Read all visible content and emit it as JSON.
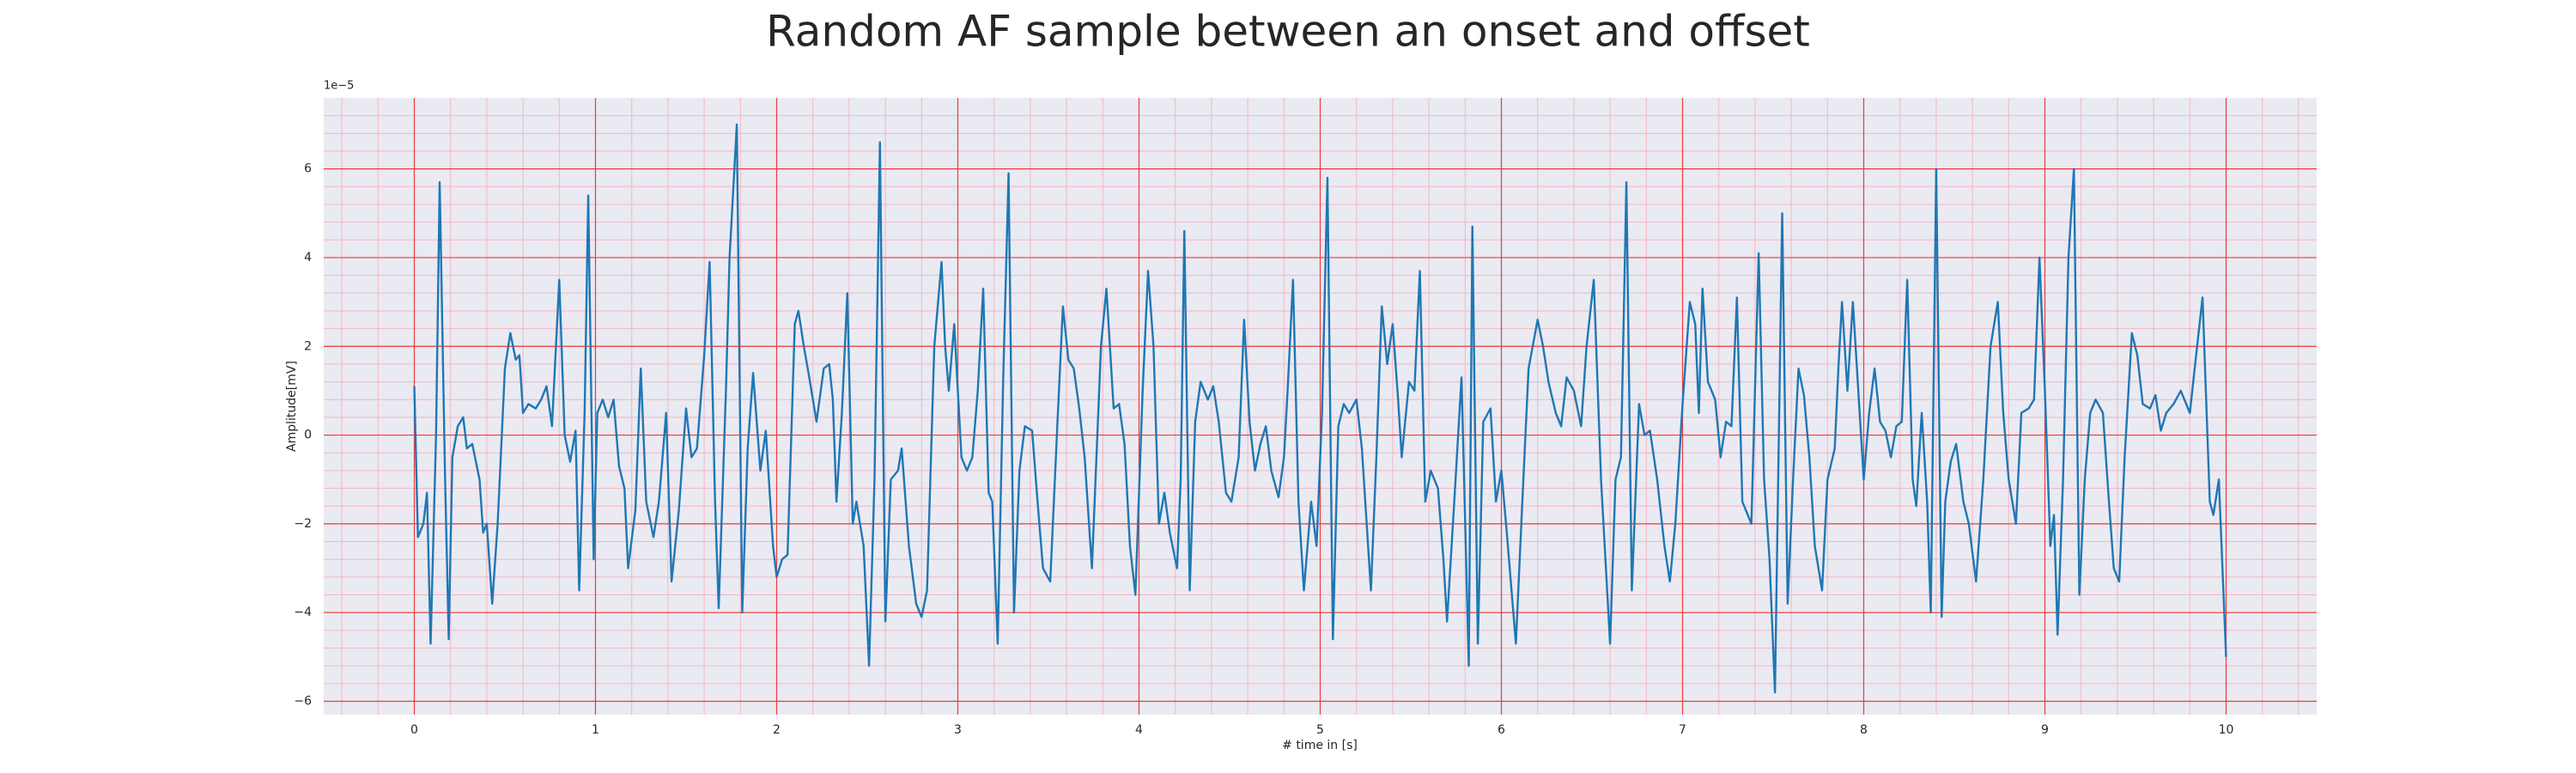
{
  "chart_data": {
    "type": "line",
    "title": "Random AF sample between an onset and offset",
    "x_label": "# time in [s]",
    "y_label": "Amplitude[mV]",
    "y_offset_label": "1e−5",
    "xlim": [
      -0.5,
      10.5
    ],
    "ylim": [
      -6.3,
      7.6
    ],
    "xticks": [
      0,
      1,
      2,
      3,
      4,
      5,
      6,
      7,
      8,
      9,
      10
    ],
    "yticks": [
      {
        "value": -6,
        "label": "−6"
      },
      {
        "value": -4,
        "label": "−4"
      },
      {
        "value": -2,
        "label": "−2"
      },
      0,
      2,
      4,
      6
    ],
    "grid": true,
    "minor_grid": true,
    "series": [
      {
        "color": "#1f77b4",
        "x": [
          0,
          0.02,
          0.05,
          0.07,
          0.09,
          0.12,
          0.14,
          0.17,
          0.19,
          0.21,
          0.24,
          0.27,
          0.29,
          0.32,
          0.36,
          0.38,
          0.4,
          0.43,
          0.46,
          0.5,
          0.53,
          0.56,
          0.58,
          0.6,
          0.63,
          0.67,
          0.7,
          0.73,
          0.76,
          0.8,
          0.83,
          0.86,
          0.89,
          0.91,
          0.94,
          0.96,
          0.99,
          1.01,
          1.04,
          1.07,
          1.1,
          1.13,
          1.16,
          1.18,
          1.22,
          1.25,
          1.28,
          1.32,
          1.35,
          1.39,
          1.42,
          1.46,
          1.5,
          1.53,
          1.56,
          1.6,
          1.63,
          1.66,
          1.68,
          1.72,
          1.74,
          1.78,
          1.81,
          1.84,
          1.87,
          1.91,
          1.94,
          1.98,
          2.0,
          2.03,
          2.06,
          2.1,
          2.12,
          2.15,
          2.18,
          2.22,
          2.26,
          2.29,
          2.31,
          2.33,
          2.36,
          2.39,
          2.42,
          2.44,
          2.48,
          2.51,
          2.54,
          2.57,
          2.6,
          2.63,
          2.67,
          2.69,
          2.73,
          2.77,
          2.8,
          2.83,
          2.87,
          2.91,
          2.93,
          2.95,
          2.98,
          3.02,
          3.05,
          3.08,
          3.11,
          3.14,
          3.17,
          3.19,
          3.22,
          3.25,
          3.28,
          3.31,
          3.34,
          3.37,
          3.41,
          3.44,
          3.47,
          3.51,
          3.55,
          3.58,
          3.61,
          3.64,
          3.67,
          3.7,
          3.74,
          3.79,
          3.82,
          3.86,
          3.89,
          3.92,
          3.95,
          3.98,
          4.02,
          4.05,
          4.08,
          4.11,
          4.14,
          4.17,
          4.21,
          4.23,
          4.25,
          4.28,
          4.31,
          4.34,
          4.38,
          4.41,
          4.44,
          4.48,
          4.51,
          4.55,
          4.58,
          4.61,
          4.64,
          4.67,
          4.7,
          4.73,
          4.77,
          4.8,
          4.82,
          4.85,
          4.88,
          4.91,
          4.95,
          4.98,
          5.01,
          5.04,
          5.07,
          5.1,
          5.13,
          5.16,
          5.2,
          5.23,
          5.28,
          5.31,
          5.34,
          5.37,
          5.4,
          5.43,
          5.45,
          5.49,
          5.52,
          5.55,
          5.58,
          5.61,
          5.65,
          5.68,
          5.7,
          5.74,
          5.78,
          5.82,
          5.84,
          5.87,
          5.9,
          5.94,
          5.97,
          6.0,
          6.03,
          6.08,
          6.11,
          6.15,
          6.2,
          6.23,
          6.26,
          6.3,
          6.33,
          6.36,
          6.4,
          6.44,
          6.47,
          6.51,
          6.55,
          6.6,
          6.63,
          6.66,
          6.69,
          6.72,
          6.76,
          6.79,
          6.82,
          6.86,
          6.9,
          6.93,
          6.96,
          7.0,
          7.04,
          7.07,
          7.09,
          7.11,
          7.14,
          7.18,
          7.21,
          7.24,
          7.27,
          7.3,
          7.33,
          7.38,
          7.42,
          7.45,
          7.48,
          7.51,
          7.55,
          7.58,
          7.61,
          7.64,
          7.67,
          7.7,
          7.73,
          7.77,
          7.8,
          7.84,
          7.86,
          7.88,
          7.91,
          7.94,
          7.97,
          8.0,
          8.03,
          8.06,
          8.09,
          8.12,
          8.15,
          8.18,
          8.21,
          8.24,
          8.27,
          8.29,
          8.32,
          8.35,
          8.37,
          8.4,
          8.43,
          8.45,
          8.48,
          8.51,
          8.55,
          8.58,
          8.62,
          8.66,
          8.7,
          8.74,
          8.77,
          8.8,
          8.84,
          8.87,
          8.91,
          8.94,
          8.97,
          9.0,
          9.03,
          9.05,
          9.07,
          9.1,
          9.13,
          9.16,
          9.19,
          9.22,
          9.25,
          9.28,
          9.32,
          9.35,
          9.38,
          9.41,
          9.44,
          9.48,
          9.51,
          9.54,
          9.58,
          9.61,
          9.64,
          9.67,
          9.71,
          9.75,
          9.8,
          9.84,
          9.87,
          9.91,
          9.93,
          9.96,
          10.0
        ],
        "values": [
          1.1,
          -2.3,
          -2.0,
          -1.3,
          -4.7,
          0,
          5.7,
          -1.0,
          -4.6,
          -0.5,
          0.2,
          0.4,
          -0.3,
          -0.2,
          -1.0,
          -2.2,
          -2.0,
          -3.8,
          -2.0,
          1.5,
          2.3,
          1.7,
          1.8,
          0.5,
          0.7,
          0.6,
          0.8,
          1.1,
          0.2,
          3.5,
          0,
          -0.6,
          0.1,
          -3.5,
          0.5,
          5.4,
          -2.8,
          0.5,
          0.8,
          0.4,
          0.8,
          -0.7,
          -1.2,
          -3.0,
          -1.7,
          1.5,
          -1.5,
          -2.3,
          -1.5,
          0.5,
          -3.3,
          -1.7,
          0.6,
          -0.5,
          -0.3,
          1.8,
          3.9,
          -1.5,
          -3.9,
          1.0,
          4.0,
          7.0,
          -4.0,
          -0.3,
          1.4,
          -0.8,
          0.1,
          -2.5,
          -3.2,
          -2.8,
          -2.7,
          2.5,
          2.8,
          2.0,
          1.3,
          0.3,
          1.5,
          1.6,
          0.8,
          -1.5,
          0.5,
          3.2,
          -2.0,
          -1.5,
          -2.5,
          -5.2,
          -1.0,
          6.6,
          -4.2,
          -1.0,
          -0.8,
          -0.3,
          -2.5,
          -3.8,
          -4.1,
          -3.5,
          2.0,
          3.9,
          2.0,
          1.0,
          2.5,
          -0.5,
          -0.8,
          -0.5,
          1.0,
          3.3,
          -1.3,
          -1.5,
          -4.7,
          1.2,
          5.9,
          -4.0,
          -0.8,
          0.2,
          0.1,
          -1.5,
          -3.0,
          -3.3,
          0.3,
          2.9,
          1.7,
          1.5,
          0.6,
          -0.5,
          -3.0,
          2.0,
          3.3,
          0.6,
          0.7,
          -0.2,
          -2.5,
          -3.6,
          1.0,
          3.7,
          2.0,
          -2.0,
          -1.3,
          -2.2,
          -3.0,
          -1.0,
          4.6,
          -3.5,
          0.3,
          1.2,
          0.8,
          1.1,
          0.3,
          -1.3,
          -1.5,
          -0.5,
          2.6,
          0.3,
          -0.8,
          -0.2,
          0.2,
          -0.8,
          -1.4,
          -0.5,
          1.0,
          3.5,
          -1.5,
          -3.5,
          -1.5,
          -2.5,
          0.5,
          5.8,
          -4.6,
          0.2,
          0.7,
          0.5,
          0.8,
          -0.3,
          -3.5,
          -0.5,
          2.9,
          1.6,
          2.5,
          0.8,
          -0.5,
          1.2,
          1.0,
          3.7,
          -1.5,
          -0.8,
          -1.2,
          -2.8,
          -4.2,
          -1.5,
          1.3,
          -5.2,
          4.7,
          -4.7,
          0.3,
          0.6,
          -1.5,
          -0.8,
          -2.2,
          -4.7,
          -2.0,
          1.5,
          2.6,
          2.0,
          1.2,
          0.5,
          0.2,
          1.3,
          1.0,
          0.2,
          2.0,
          3.5,
          -1.0,
          -4.7,
          -1.0,
          -0.5,
          5.7,
          -3.5,
          0.7,
          0,
          0.1,
          -1.0,
          -2.5,
          -3.3,
          -2.0,
          0.7,
          3.0,
          2.5,
          0.5,
          3.3,
          1.2,
          0.8,
          -0.5,
          0.3,
          0.2,
          3.1,
          -1.5,
          -2.0,
          4.1,
          -1.0,
          -2.8,
          -5.8,
          5.0,
          -3.8,
          -1.0,
          1.5,
          0.9,
          -0.5,
          -2.5,
          -3.5,
          -1.0,
          -0.3,
          1.5,
          3.0,
          1.0,
          3.0,
          1.0,
          -1.0,
          0.5,
          1.5,
          0.3,
          0.1,
          -0.5,
          0.2,
          0.3,
          3.5,
          -1.0,
          -1.6,
          0.5,
          -1.5,
          -4.0,
          6.0,
          -4.1,
          -1.5,
          -0.6,
          -0.2,
          -1.5,
          -2.0,
          -3.3,
          -1.0,
          2.0,
          3.0,
          0.5,
          -1.0,
          -2.0,
          0.5,
          0.6,
          0.8,
          4.0,
          1.0,
          -2.5,
          -1.8,
          -4.5,
          -1.0,
          4.0,
          6.0,
          -3.6,
          -1.0,
          0.5,
          0.8,
          0.5,
          -1.3,
          -3.0,
          -3.3,
          -0.5,
          2.3,
          1.8,
          0.7,
          0.6,
          0.9,
          0.1,
          0.5,
          0.7,
          1.0,
          0.5,
          2.0,
          3.1,
          -1.5,
          -1.8,
          -1.0,
          -5.0
        ]
      }
    ]
  }
}
